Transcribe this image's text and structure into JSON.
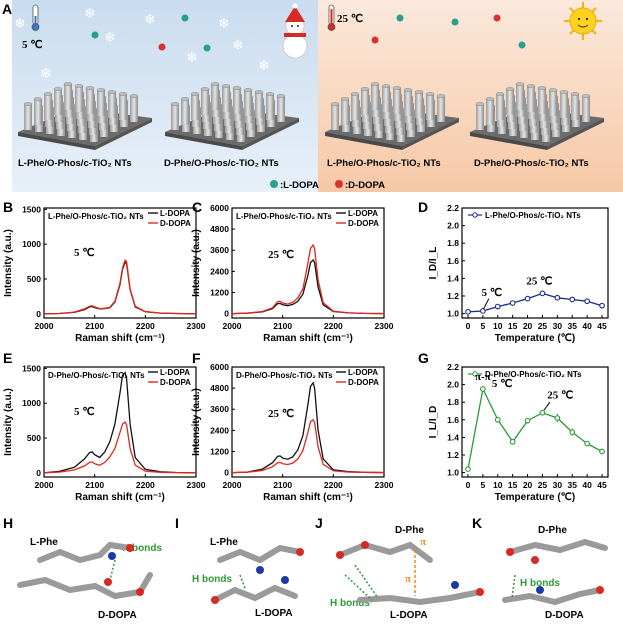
{
  "panel_letters": {
    "A": "A",
    "B": "B",
    "C": "C",
    "D": "D",
    "E": "E",
    "F": "F",
    "G": "G",
    "H": "H",
    "I": "I",
    "J": "J",
    "K": "K"
  },
  "panel_a": {
    "temp_cold": "5 ℃",
    "temp_warm": "25 ℃",
    "label_1": "L-Phe/O-Phos/c-TiO₂ NTs",
    "label_2": "D-Phe/O-Phos/c-TiO₂ NTs",
    "label_3": "L-Phe/O-Phos/c-TiO₂ NTs",
    "label_4": "D-Phe/O-Phos/c-TiO₂ NTs",
    "legend_l": ":L-DOPA",
    "legend_d": ":D-DOPA",
    "colors": {
      "cold_bg": "#d8e6f4",
      "warm_bg": "#f8dcc4",
      "l_dopa": "#2aa08a",
      "d_dopa": "#d8322c"
    }
  },
  "chart_data": [
    {
      "id": "B",
      "type": "line",
      "title": "L-Phe/O-Phos/c-TiO₂ NTs",
      "annotation": "5 ℃",
      "xlabel": "Raman shift (cm⁻¹)",
      "ylabel": "Intensity (a.u.)",
      "xlim": [
        2000,
        2300
      ],
      "ylim": [
        -60,
        1520
      ],
      "xticks": [
        2000,
        2100,
        2200,
        2300
      ],
      "yticks": [
        0,
        500,
        1000,
        1500
      ],
      "series": [
        {
          "name": "L-DOPA",
          "color": "#111111",
          "x": [
            2000,
            2030,
            2060,
            2080,
            2090,
            2095,
            2100,
            2110,
            2120,
            2130,
            2140,
            2150,
            2155,
            2160,
            2163,
            2170,
            2180,
            2200,
            2230,
            2260,
            2300
          ],
          "y": [
            0,
            5,
            20,
            60,
            100,
            105,
            90,
            70,
            75,
            90,
            170,
            420,
            640,
            740,
            720,
            350,
            100,
            30,
            10,
            5,
            0
          ]
        },
        {
          "name": "D-DOPA",
          "color": "#e0281e",
          "x": [
            2000,
            2030,
            2060,
            2080,
            2090,
            2095,
            2100,
            2110,
            2120,
            2130,
            2140,
            2150,
            2155,
            2160,
            2163,
            2170,
            2180,
            2200,
            2230,
            2260,
            2300
          ],
          "y": [
            0,
            5,
            25,
            70,
            110,
            115,
            100,
            75,
            80,
            95,
            180,
            440,
            660,
            770,
            750,
            360,
            110,
            30,
            10,
            5,
            0
          ]
        }
      ]
    },
    {
      "id": "C",
      "type": "line",
      "title": "L-Phe/O-Phos/c-TiO₂ NTs",
      "annotation": "25 ℃",
      "xlabel": "Raman shift (cm⁻¹)",
      "ylabel": "Intensity (a.u.)",
      "xlim": [
        2000,
        2300
      ],
      "ylim": [
        -250,
        6000
      ],
      "xticks": [
        2000,
        2100,
        2200,
        2300
      ],
      "yticks": [
        0,
        1200,
        2400,
        3600,
        4800,
        6000
      ],
      "series": [
        {
          "name": "L-DOPA",
          "color": "#111111",
          "x": [
            2000,
            2030,
            2060,
            2080,
            2090,
            2095,
            2100,
            2110,
            2120,
            2130,
            2140,
            2150,
            2155,
            2160,
            2163,
            2170,
            2180,
            2200,
            2230,
            2260,
            2300
          ],
          "y": [
            0,
            20,
            100,
            280,
            560,
            580,
            500,
            450,
            520,
            700,
            1100,
            2200,
            2900,
            3050,
            2900,
            1500,
            500,
            120,
            40,
            10,
            0
          ]
        },
        {
          "name": "D-DOPA",
          "color": "#e0281e",
          "x": [
            2000,
            2030,
            2060,
            2080,
            2090,
            2095,
            2100,
            2110,
            2120,
            2130,
            2140,
            2150,
            2155,
            2160,
            2163,
            2170,
            2180,
            2200,
            2230,
            2260,
            2300
          ],
          "y": [
            0,
            20,
            120,
            330,
            680,
            700,
            600,
            540,
            640,
            900,
            1400,
            2900,
            3700,
            3900,
            3700,
            1900,
            620,
            140,
            40,
            10,
            0
          ]
        }
      ]
    },
    {
      "id": "D",
      "type": "line",
      "legend": "L-Phe/O-Phos/c-TiO₂ NTs",
      "annotation": "25 ℃",
      "annotation2": "5 ℃",
      "xlabel": "Temperature (℃)",
      "ylabel": "I_D/I_L",
      "xlim": [
        -2,
        47
      ],
      "ylim": [
        0.95,
        2.2
      ],
      "xticks": [
        0,
        5,
        10,
        15,
        20,
        25,
        30,
        35,
        40,
        45
      ],
      "yticks": [
        1.0,
        1.2,
        1.4,
        1.6,
        1.8,
        2.0,
        2.2
      ],
      "series": [
        {
          "name": "L-Phe/O-Phos/c-TiO₂ NTs",
          "color": "#1c2a8c",
          "x": [
            0,
            5,
            10,
            15,
            20,
            25,
            30,
            35,
            40,
            45
          ],
          "y": [
            1.02,
            1.03,
            1.08,
            1.12,
            1.17,
            1.23,
            1.18,
            1.16,
            1.14,
            1.09
          ]
        }
      ]
    },
    {
      "id": "E",
      "type": "line",
      "title": "D-Phe/O-Phos/c-TiO₂ NTs",
      "annotation": "5 ℃",
      "xlabel": "Raman shift (cm⁻¹)",
      "ylabel": "Intensity (a.u.)",
      "xlim": [
        2000,
        2300
      ],
      "ylim": [
        -60,
        1520
      ],
      "xticks": [
        2000,
        2100,
        2200,
        2300
      ],
      "yticks": [
        0,
        500,
        1000,
        1500
      ],
      "series": [
        {
          "name": "L-DOPA",
          "color": "#111111",
          "x": [
            2000,
            2030,
            2060,
            2080,
            2090,
            2095,
            2100,
            2110,
            2120,
            2130,
            2140,
            2150,
            2155,
            2160,
            2163,
            2170,
            2180,
            2200,
            2230,
            2260,
            2300
          ],
          "y": [
            0,
            20,
            80,
            200,
            290,
            300,
            260,
            220,
            300,
            450,
            700,
            1150,
            1400,
            1440,
            1350,
            700,
            220,
            50,
            15,
            5,
            0
          ]
        },
        {
          "name": "D-DOPA",
          "color": "#e0281e",
          "x": [
            2000,
            2030,
            2060,
            2080,
            2090,
            2095,
            2100,
            2110,
            2120,
            2130,
            2140,
            2150,
            2155,
            2160,
            2163,
            2170,
            2180,
            2200,
            2230,
            2260,
            2300
          ],
          "y": [
            0,
            10,
            40,
            100,
            150,
            155,
            130,
            110,
            150,
            230,
            350,
            580,
            700,
            730,
            690,
            350,
            110,
            25,
            8,
            3,
            0
          ]
        }
      ]
    },
    {
      "id": "F",
      "type": "line",
      "title": "D-Phe/O-Phos/c-TiO₂ NTs",
      "annotation": "25 ℃",
      "xlabel": "Raman shift (cm⁻¹)",
      "ylabel": "Intensity (a.u.)",
      "xlim": [
        2000,
        2300
      ],
      "ylim": [
        -250,
        6000
      ],
      "xticks": [
        2000,
        2100,
        2200,
        2300
      ],
      "yticks": [
        0,
        1200,
        2400,
        3600,
        4800,
        6000
      ],
      "series": [
        {
          "name": "L-DOPA",
          "color": "#111111",
          "x": [
            2000,
            2030,
            2060,
            2080,
            2090,
            2095,
            2100,
            2110,
            2120,
            2130,
            2140,
            2150,
            2155,
            2160,
            2163,
            2170,
            2180,
            2200,
            2230,
            2260,
            2300
          ],
          "y": [
            0,
            30,
            200,
            560,
            920,
            950,
            820,
            760,
            900,
            1300,
            2100,
            3900,
            4900,
            5100,
            4800,
            2400,
            780,
            160,
            50,
            15,
            0
          ]
        },
        {
          "name": "D-DOPA",
          "color": "#e0281e",
          "x": [
            2000,
            2030,
            2060,
            2080,
            2090,
            2095,
            2100,
            2110,
            2120,
            2130,
            2140,
            2150,
            2155,
            2160,
            2163,
            2170,
            2180,
            2200,
            2230,
            2260,
            2300
          ],
          "y": [
            0,
            20,
            120,
            330,
            560,
            580,
            500,
            460,
            540,
            780,
            1250,
            2300,
            2900,
            3000,
            2850,
            1450,
            470,
            100,
            30,
            10,
            0
          ]
        }
      ]
    },
    {
      "id": "G",
      "type": "line",
      "legend": "D-Phe/O-Phos/c-TiO₂ NTs",
      "annotation": "5 ℃",
      "annotation2": "25 ℃",
      "annotation3": "π-π",
      "xlabel": "Temperature (℃)",
      "ylabel": "I_L/I_D",
      "xlim": [
        -2,
        47
      ],
      "ylim": [
        0.95,
        2.2
      ],
      "xticks": [
        0,
        5,
        10,
        15,
        20,
        25,
        30,
        35,
        40,
        45
      ],
      "yticks": [
        1.0,
        1.2,
        1.4,
        1.6,
        1.8,
        2.0,
        2.2
      ],
      "series": [
        {
          "name": "D-Phe/O-Phos/c-TiO₂ NTs",
          "color": "#2e9a36",
          "x": [
            0,
            5,
            10,
            15,
            20,
            25,
            30,
            35,
            40,
            45
          ],
          "y": [
            1.04,
            1.95,
            1.6,
            1.35,
            1.59,
            1.68,
            1.62,
            1.46,
            1.33,
            1.24
          ],
          "err": [
            0.01,
            0.03,
            0.02,
            0.02,
            0.02,
            0.03,
            0.05,
            0.04,
            0.02,
            0.01
          ]
        }
      ]
    }
  ],
  "panel_mol": {
    "H": {
      "top": "L-Phe",
      "bottom": "D-DOPA",
      "bond": "H bonds"
    },
    "I": {
      "top": "L-Phe",
      "bottom": "L-DOPA",
      "bond": "H bonds"
    },
    "J": {
      "top": "D-Phe",
      "bottom": "L-DOPA",
      "bond": "H bonds",
      "pi": "π"
    },
    "K": {
      "top": "D-Phe",
      "bottom": "D-DOPA",
      "bond": "H bonds"
    }
  }
}
